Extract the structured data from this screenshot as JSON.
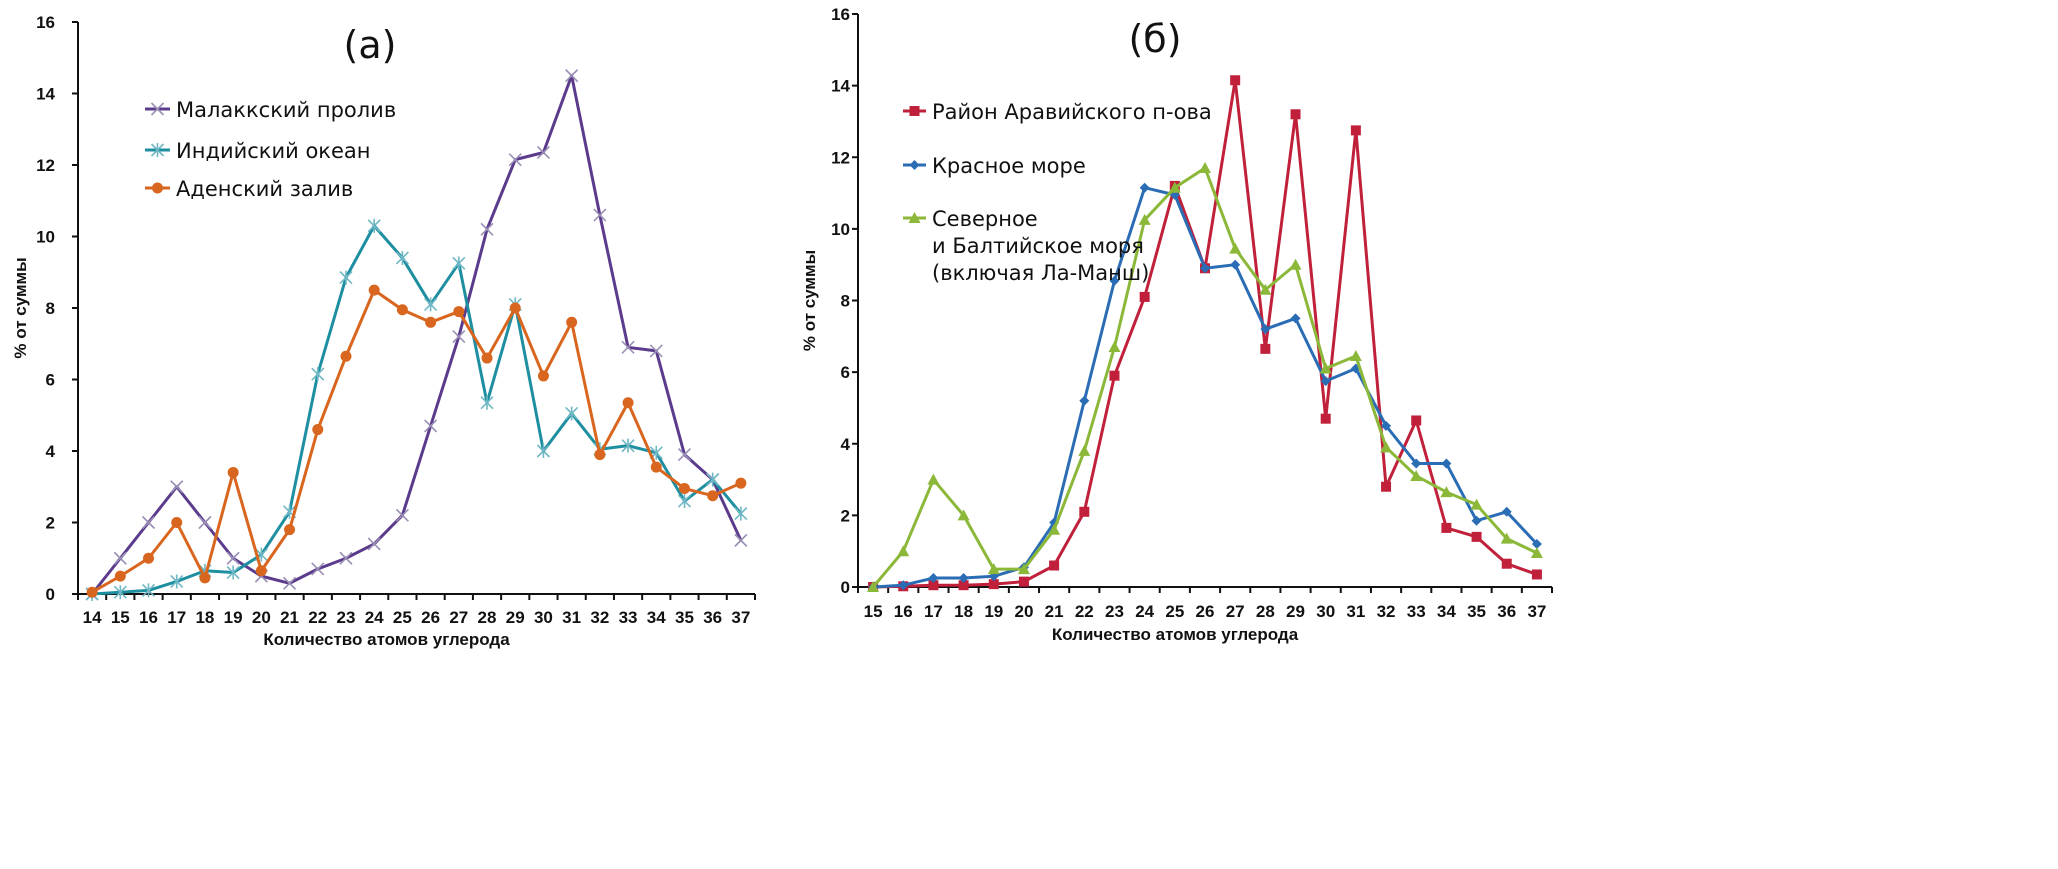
{
  "chart_data": [
    {
      "type": "line",
      "title": "(а)",
      "xlabel": "Количество атомов углерода",
      "ylabel": "% от суммы",
      "ylim": [
        0,
        16
      ],
      "yticks": [
        0,
        2,
        4,
        6,
        8,
        10,
        12,
        14,
        16
      ],
      "categories": [
        14,
        15,
        16,
        17,
        18,
        19,
        20,
        21,
        22,
        23,
        24,
        25,
        26,
        27,
        28,
        29,
        30,
        31,
        32,
        33,
        34,
        35,
        36,
        37
      ],
      "legend_position": "top-left",
      "series": [
        {
          "name": "Малаккский пролив",
          "color": "#5b3b8c",
          "marker": "x",
          "values": [
            0,
            1.0,
            2.0,
            3.0,
            2.0,
            1.0,
            0.5,
            0.3,
            0.7,
            1.0,
            1.4,
            2.2,
            4.7,
            7.2,
            10.2,
            12.15,
            12.35,
            14.5,
            10.6,
            6.9,
            6.8,
            3.9,
            3.2,
            1.5
          ]
        },
        {
          "name": "Индийский океан",
          "color": "#1e8fa0",
          "marker": "star",
          "values": [
            0,
            0.05,
            0.1,
            0.35,
            0.65,
            0.6,
            1.1,
            2.3,
            6.15,
            8.85,
            10.3,
            9.4,
            8.1,
            9.25,
            5.35,
            8.1,
            4.0,
            5.05,
            4.05,
            4.15,
            3.95,
            2.6,
            3.2,
            2.25
          ]
        },
        {
          "name": "Аденский залив",
          "color": "#d9661f",
          "marker": "circle",
          "values": [
            0.05,
            0.5,
            1.0,
            2.0,
            0.45,
            3.4,
            0.65,
            1.8,
            4.6,
            6.65,
            8.5,
            7.95,
            7.6,
            7.9,
            6.6,
            8.0,
            6.1,
            7.6,
            3.9,
            5.35,
            3.55,
            2.95,
            2.75,
            3.1
          ]
        }
      ]
    },
    {
      "type": "line",
      "title": "(б)",
      "xlabel": "Количество  атомов углерода",
      "ylabel": "% от суммы",
      "ylim": [
        0,
        16
      ],
      "yticks": [
        0,
        2,
        4,
        6,
        8,
        10,
        12,
        14,
        16
      ],
      "categories": [
        15,
        16,
        17,
        18,
        19,
        20,
        21,
        22,
        23,
        24,
        25,
        26,
        27,
        28,
        29,
        30,
        31,
        32,
        33,
        34,
        35,
        36,
        37
      ],
      "legend_position": "top-left",
      "series": [
        {
          "name": "Район Аравийского п-ова",
          "name_lines": [
            "Район Аравийского п-ова"
          ],
          "color": "#c0203a",
          "marker": "square",
          "values": [
            0,
            0.02,
            0.05,
            0.05,
            0.08,
            0.15,
            0.6,
            2.1,
            5.9,
            8.1,
            11.2,
            8.9,
            14.15,
            6.65,
            13.2,
            4.7,
            12.75,
            2.8,
            4.65,
            1.65,
            1.4,
            0.65,
            0.35
          ]
        },
        {
          "name": "Красное море",
          "name_lines": [
            "Красное море"
          ],
          "color": "#2a6db5",
          "marker": "diamond",
          "values": [
            0,
            0.05,
            0.25,
            0.25,
            0.3,
            0.55,
            1.8,
            5.2,
            8.55,
            11.15,
            10.95,
            8.9,
            9.0,
            7.2,
            7.5,
            5.75,
            6.1,
            4.5,
            3.45,
            3.45,
            1.85,
            2.1,
            1.2
          ]
        },
        {
          "name": "Северное и Балтийское моря (включая Ла-Манш)",
          "name_lines": [
            "Северное",
            "и Балтийское моря",
            "(включая Ла-Манш)"
          ],
          "color": "#8cb83a",
          "marker": "triangle",
          "values": [
            0,
            1.0,
            3.0,
            2.0,
            0.5,
            0.5,
            1.6,
            3.8,
            6.7,
            10.25,
            11.15,
            11.7,
            9.45,
            8.3,
            9.0,
            6.1,
            6.45,
            3.9,
            3.1,
            2.65,
            2.3,
            1.35,
            0.95
          ]
        }
      ]
    }
  ]
}
